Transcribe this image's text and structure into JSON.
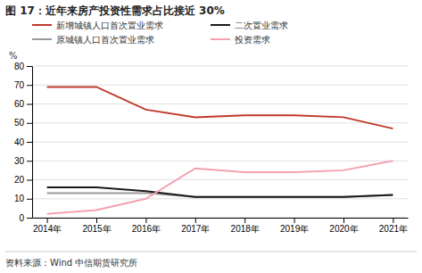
{
  "chart_data": {
    "type": "line",
    "title": "图 17：近年来房产投资性需求占比接近 30%",
    "ylabel": "%",
    "source": "资料来源：Wind 中信期货研究所",
    "categories": [
      "2014年",
      "2015年",
      "2016年",
      "2017年",
      "2018年",
      "2019年",
      "2020年",
      "2021年"
    ],
    "series": [
      {
        "name": "新增城镇人口首次置业需求",
        "color": "#c0392b",
        "values": [
          69,
          69,
          57,
          53,
          54,
          54,
          53,
          47
        ]
      },
      {
        "name": "原城镇人口首次置业需求",
        "color": "#999999",
        "values": [
          13,
          13,
          13,
          11,
          11,
          11,
          11,
          12
        ]
      },
      {
        "name": "二次置业需求",
        "color": "#1a1a1a",
        "values": [
          16,
          16,
          14,
          11,
          11,
          11,
          11,
          12
        ]
      },
      {
        "name": "投资需求",
        "color": "#f4a0b0",
        "values": [
          2,
          4,
          10,
          26,
          24,
          24,
          25,
          30
        ]
      }
    ],
    "ylim": [
      0,
      80
    ],
    "yticks": [
      0,
      10,
      20,
      30,
      40,
      50,
      60,
      70,
      80
    ],
    "grid": true,
    "legend": "top"
  }
}
